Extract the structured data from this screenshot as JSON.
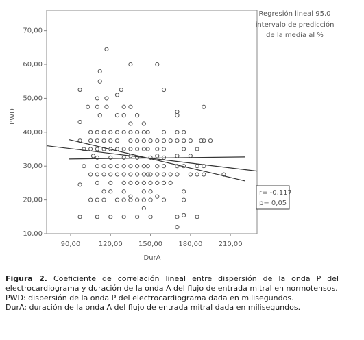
{
  "chart_data": {
    "type": "scatter",
    "x_label": "DurA",
    "y_label": "PWD",
    "legend_lines": [
      "Regresión lineal 95,0",
      "intervalo de predicción",
      "de la media al %"
    ],
    "annotation_lines": [
      "r= -0,117",
      "p= 0,05"
    ],
    "xlim": [
      72,
      230
    ],
    "ylim": [
      10,
      76
    ],
    "xticks": [
      {
        "value": 90,
        "label": "90,00"
      },
      {
        "value": 120,
        "label": "120,00"
      },
      {
        "value": 150,
        "label": "150,00"
      },
      {
        "value": 180,
        "label": "180,00"
      },
      {
        "value": 210,
        "label": "210,00"
      }
    ],
    "yticks": [
      {
        "value": 10,
        "label": "10,00"
      },
      {
        "value": 20,
        "label": "20,00"
      },
      {
        "value": 30,
        "label": "30,00"
      },
      {
        "value": 40,
        "label": "40,00"
      },
      {
        "value": 50,
        "label": "50,00"
      },
      {
        "value": 60,
        "label": "60,00"
      },
      {
        "value": 70,
        "label": "70,00"
      }
    ],
    "color": "#555555",
    "x": [
      97,
      97,
      97,
      97,
      97,
      100,
      100,
      103,
      105,
      105,
      105,
      105,
      105,
      107,
      110,
      110,
      110,
      110,
      110,
      110,
      110,
      110,
      110,
      110,
      110,
      112,
      112,
      112,
      115,
      115,
      115,
      115,
      115,
      115,
      115,
      117,
      117,
      117,
      120,
      120,
      120,
      120,
      120,
      120,
      120,
      120,
      120,
      125,
      125,
      125,
      125,
      125,
      125,
      125,
      125,
      128,
      130,
      130,
      130,
      130,
      130,
      130,
      130,
      130,
      130,
      130,
      130,
      135,
      135,
      135,
      135,
      135,
      135,
      135,
      135,
      135,
      135,
      135,
      135,
      140,
      140,
      140,
      140,
      140,
      140,
      140,
      140,
      140,
      140,
      145,
      145,
      145,
      145,
      145,
      145,
      145,
      145,
      145,
      145,
      148,
      148,
      148,
      148,
      150,
      150,
      150,
      150,
      150,
      150,
      150,
      155,
      155,
      155,
      155,
      155,
      155,
      155,
      155,
      160,
      160,
      160,
      160,
      160,
      160,
      160,
      160,
      160,
      165,
      165,
      165,
      170,
      170,
      170,
      170,
      170,
      170,
      170,
      170,
      170,
      175,
      175,
      175,
      175,
      175,
      175,
      175,
      180,
      180,
      180,
      185,
      185,
      185,
      185,
      188,
      190,
      190,
      190,
      190,
      195,
      205
    ],
    "values": [
      24.5,
      37.5,
      43,
      52.5,
      15,
      35,
      30,
      47.5,
      40,
      37.5,
      35,
      27.5,
      20,
      33,
      50,
      47.5,
      40,
      37.5,
      35,
      32.5,
      30,
      27.5,
      25,
      20,
      15,
      55,
      58,
      45,
      40,
      37.5,
      35,
      30,
      27.5,
      22.5,
      20,
      64.5,
      50,
      47.5,
      40,
      37.5,
      35,
      32.5,
      30,
      27.5,
      25,
      22.5,
      15,
      51,
      45,
      40,
      37.5,
      35,
      30,
      27.5,
      20,
      52.5,
      47.5,
      45,
      40,
      35,
      32.5,
      30,
      27.5,
      25,
      22.5,
      20,
      15,
      60,
      47.5,
      42.5,
      40,
      37.5,
      35,
      33,
      30,
      27.5,
      25,
      21,
      20,
      45,
      40,
      37.5,
      35,
      32.5,
      30,
      27.5,
      25,
      20,
      15,
      42.5,
      40,
      37.5,
      35,
      30,
      27.5,
      25,
      22.5,
      20,
      17.5,
      40,
      35,
      30,
      27.5,
      37.5,
      32.5,
      27.5,
      25,
      22.5,
      20,
      15,
      60,
      37.5,
      35,
      33,
      30,
      27.5,
      25,
      21,
      52.5,
      40,
      37.5,
      35,
      32.5,
      30,
      27.5,
      25,
      20,
      37.5,
      27.5,
      25,
      46,
      45,
      40,
      37.5,
      33,
      30,
      27.5,
      15,
      12,
      40,
      37.5,
      35,
      30,
      22.5,
      20,
      15.5,
      37.5,
      33,
      27.5,
      35,
      30,
      27.5,
      15,
      37.5,
      47.5,
      37.5,
      30,
      27.5,
      37.5,
      27.5
    ],
    "lines": [
      {
        "x": [
          72,
          230
        ],
        "y": [
          36,
          28.5
        ],
        "color": "#333333"
      },
      {
        "x": [
          89,
          221
        ],
        "y": [
          37.8,
          25.6
        ],
        "color": "#333333"
      },
      {
        "x": [
          89,
          221
        ],
        "y": [
          32.1,
          32.7
        ],
        "color": "#333333"
      }
    ]
  },
  "caption": {
    "label": "Figura 2.",
    "text": "Coeficiente de correlación lineal entre dispersión de la onda P del electrocardiograma y duración de la onda A del flujo de entrada mitral en normotensos.",
    "notes": [
      "PWD: dispersión de la onda P del electrocardiograma dada en milisegundos.",
      "DurA: duración de la onda A del flujo de entrada mitral dada en milisegundos."
    ]
  }
}
